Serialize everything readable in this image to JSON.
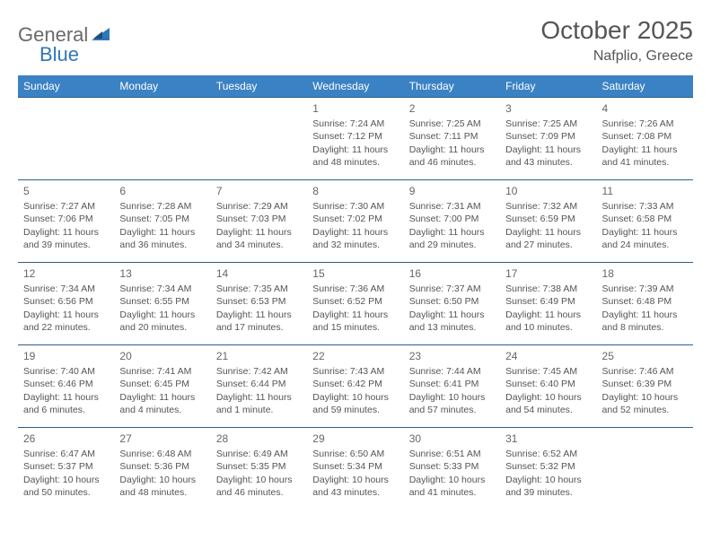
{
  "logo": {
    "text1": "General",
    "text2": "Blue"
  },
  "title": "October 2025",
  "location": "Nafplio, Greece",
  "colors": {
    "header_bg": "#3b82c4",
    "header_text": "#ffffff",
    "border": "#2f5d86",
    "body_text": "#555555",
    "logo_gray": "#6a6a6a",
    "logo_blue": "#2f76b9"
  },
  "dayNames": [
    "Sunday",
    "Monday",
    "Tuesday",
    "Wednesday",
    "Thursday",
    "Friday",
    "Saturday"
  ],
  "weeks": [
    [
      null,
      null,
      null,
      {
        "n": "1",
        "sr": "7:24 AM",
        "ss": "7:12 PM",
        "dl": "11 hours and 48 minutes."
      },
      {
        "n": "2",
        "sr": "7:25 AM",
        "ss": "7:11 PM",
        "dl": "11 hours and 46 minutes."
      },
      {
        "n": "3",
        "sr": "7:25 AM",
        "ss": "7:09 PM",
        "dl": "11 hours and 43 minutes."
      },
      {
        "n": "4",
        "sr": "7:26 AM",
        "ss": "7:08 PM",
        "dl": "11 hours and 41 minutes."
      }
    ],
    [
      {
        "n": "5",
        "sr": "7:27 AM",
        "ss": "7:06 PM",
        "dl": "11 hours and 39 minutes."
      },
      {
        "n": "6",
        "sr": "7:28 AM",
        "ss": "7:05 PM",
        "dl": "11 hours and 36 minutes."
      },
      {
        "n": "7",
        "sr": "7:29 AM",
        "ss": "7:03 PM",
        "dl": "11 hours and 34 minutes."
      },
      {
        "n": "8",
        "sr": "7:30 AM",
        "ss": "7:02 PM",
        "dl": "11 hours and 32 minutes."
      },
      {
        "n": "9",
        "sr": "7:31 AM",
        "ss": "7:00 PM",
        "dl": "11 hours and 29 minutes."
      },
      {
        "n": "10",
        "sr": "7:32 AM",
        "ss": "6:59 PM",
        "dl": "11 hours and 27 minutes."
      },
      {
        "n": "11",
        "sr": "7:33 AM",
        "ss": "6:58 PM",
        "dl": "11 hours and 24 minutes."
      }
    ],
    [
      {
        "n": "12",
        "sr": "7:34 AM",
        "ss": "6:56 PM",
        "dl": "11 hours and 22 minutes."
      },
      {
        "n": "13",
        "sr": "7:34 AM",
        "ss": "6:55 PM",
        "dl": "11 hours and 20 minutes."
      },
      {
        "n": "14",
        "sr": "7:35 AM",
        "ss": "6:53 PM",
        "dl": "11 hours and 17 minutes."
      },
      {
        "n": "15",
        "sr": "7:36 AM",
        "ss": "6:52 PM",
        "dl": "11 hours and 15 minutes."
      },
      {
        "n": "16",
        "sr": "7:37 AM",
        "ss": "6:50 PM",
        "dl": "11 hours and 13 minutes."
      },
      {
        "n": "17",
        "sr": "7:38 AM",
        "ss": "6:49 PM",
        "dl": "11 hours and 10 minutes."
      },
      {
        "n": "18",
        "sr": "7:39 AM",
        "ss": "6:48 PM",
        "dl": "11 hours and 8 minutes."
      }
    ],
    [
      {
        "n": "19",
        "sr": "7:40 AM",
        "ss": "6:46 PM",
        "dl": "11 hours and 6 minutes."
      },
      {
        "n": "20",
        "sr": "7:41 AM",
        "ss": "6:45 PM",
        "dl": "11 hours and 4 minutes."
      },
      {
        "n": "21",
        "sr": "7:42 AM",
        "ss": "6:44 PM",
        "dl": "11 hours and 1 minute."
      },
      {
        "n": "22",
        "sr": "7:43 AM",
        "ss": "6:42 PM",
        "dl": "10 hours and 59 minutes."
      },
      {
        "n": "23",
        "sr": "7:44 AM",
        "ss": "6:41 PM",
        "dl": "10 hours and 57 minutes."
      },
      {
        "n": "24",
        "sr": "7:45 AM",
        "ss": "6:40 PM",
        "dl": "10 hours and 54 minutes."
      },
      {
        "n": "25",
        "sr": "7:46 AM",
        "ss": "6:39 PM",
        "dl": "10 hours and 52 minutes."
      }
    ],
    [
      {
        "n": "26",
        "sr": "6:47 AM",
        "ss": "5:37 PM",
        "dl": "10 hours and 50 minutes."
      },
      {
        "n": "27",
        "sr": "6:48 AM",
        "ss": "5:36 PM",
        "dl": "10 hours and 48 minutes."
      },
      {
        "n": "28",
        "sr": "6:49 AM",
        "ss": "5:35 PM",
        "dl": "10 hours and 46 minutes."
      },
      {
        "n": "29",
        "sr": "6:50 AM",
        "ss": "5:34 PM",
        "dl": "10 hours and 43 minutes."
      },
      {
        "n": "30",
        "sr": "6:51 AM",
        "ss": "5:33 PM",
        "dl": "10 hours and 41 minutes."
      },
      {
        "n": "31",
        "sr": "6:52 AM",
        "ss": "5:32 PM",
        "dl": "10 hours and 39 minutes."
      },
      null
    ]
  ],
  "labels": {
    "sunrise": "Sunrise: ",
    "sunset": "Sunset: ",
    "daylight": "Daylight: "
  }
}
